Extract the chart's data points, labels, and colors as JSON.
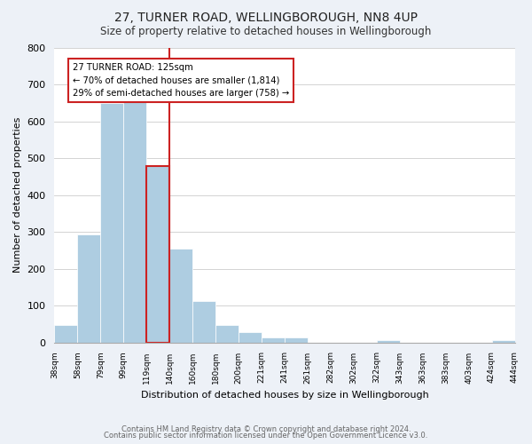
{
  "title": "27, TURNER ROAD, WELLINGBOROUGH, NN8 4UP",
  "subtitle": "Size of property relative to detached houses in Wellingborough",
  "xlabel": "Distribution of detached houses by size in Wellingborough",
  "ylabel": "Number of detached properties",
  "bin_labels": [
    "38sqm",
    "58sqm",
    "79sqm",
    "99sqm",
    "119sqm",
    "140sqm",
    "160sqm",
    "180sqm",
    "200sqm",
    "221sqm",
    "241sqm",
    "261sqm",
    "282sqm",
    "302sqm",
    "322sqm",
    "343sqm",
    "363sqm",
    "383sqm",
    "403sqm",
    "424sqm",
    "444sqm"
  ],
  "bar_heights": [
    48,
    293,
    651,
    660,
    478,
    254,
    113,
    48,
    28,
    14,
    13,
    0,
    0,
    0,
    5,
    0,
    0,
    0,
    0,
    5
  ],
  "bar_color": "#aecde1",
  "highlight_color": "#cc2222",
  "highlight_bar_index": 4,
  "vline_x": 4.5,
  "ylim": [
    0,
    800
  ],
  "yticks": [
    0,
    100,
    200,
    300,
    400,
    500,
    600,
    700,
    800
  ],
  "annotation_title": "27 TURNER ROAD: 125sqm",
  "annotation_line1": "← 70% of detached houses are smaller (1,814)",
  "annotation_line2": "29% of semi-detached houses are larger (758) →",
  "annotation_box_color": "#ffffff",
  "annotation_border_color": "#cc2222",
  "footer_line1": "Contains HM Land Registry data © Crown copyright and database right 2024.",
  "footer_line2": "Contains public sector information licensed under the Open Government Licence v3.0.",
  "background_color": "#edf1f7",
  "plot_background_color": "#ffffff",
  "grid_color": "#cccccc"
}
